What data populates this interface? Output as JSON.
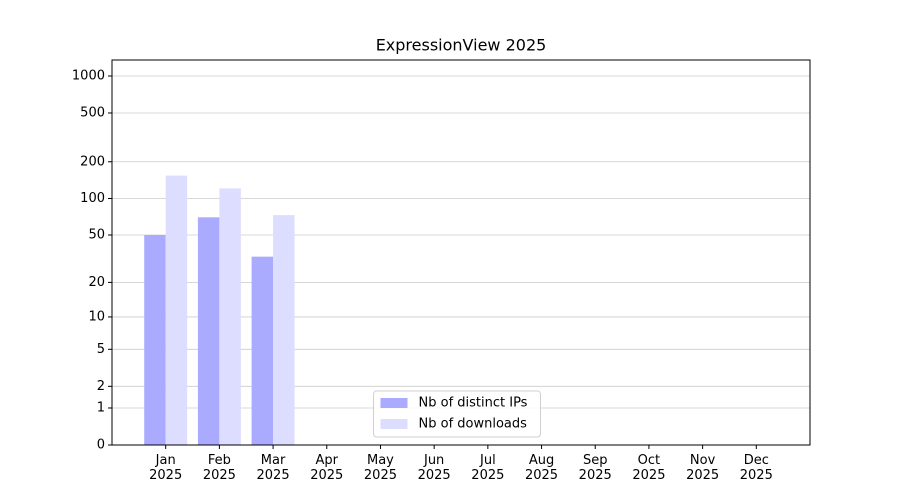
{
  "chart_data": {
    "type": "bar",
    "title": "ExpressionView 2025",
    "categories": [
      "Jan\n2025",
      "Feb\n2025",
      "Mar\n2025",
      "Apr\n2025",
      "May\n2025",
      "Jun\n2025",
      "Jul\n2025",
      "Aug\n2025",
      "Sep\n2025",
      "Oct\n2025",
      "Nov\n2025",
      "Dec\n2025"
    ],
    "series": [
      {
        "name": "Nb of distinct IPs",
        "color": "#aaaaff",
        "values": [
          50,
          70,
          33,
          null,
          null,
          null,
          null,
          null,
          null,
          null,
          null,
          null
        ]
      },
      {
        "name": "Nb of downloads",
        "color": "#ddddff",
        "values": [
          154,
          121,
          73,
          null,
          null,
          null,
          null,
          null,
          null,
          null,
          null,
          null
        ]
      }
    ],
    "yscale": "log1p",
    "ylim": [
      0,
      1350
    ],
    "yticks": [
      0,
      1,
      2,
      5,
      10,
      20,
      50,
      100,
      200,
      500,
      1000
    ],
    "grid": true,
    "legend": "lower center"
  }
}
